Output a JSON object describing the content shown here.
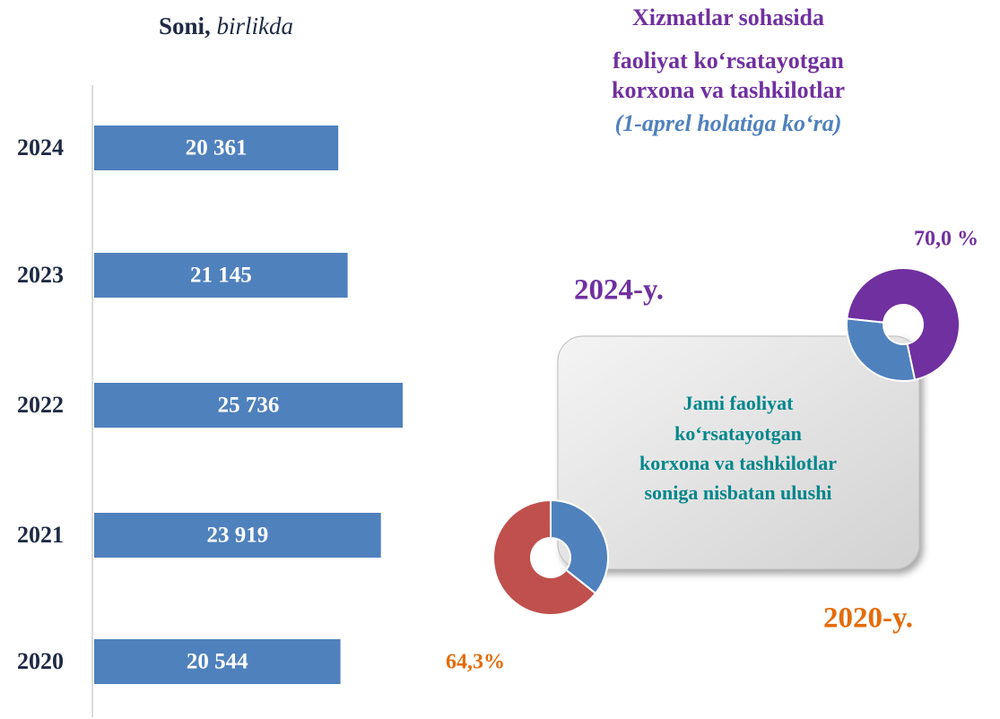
{
  "heading": {
    "lines": [
      "Xizmatlar sohasida",
      "faoliyat ko‘rsatayotgan",
      "korxona va tashkilotlar"
    ],
    "subtitle": "(1-aprel holatiga ko‘ra)"
  },
  "note": {
    "lines": [
      "Jami faoliyat",
      "ko‘rsatayotgan",
      "korxona va tashkilotlar",
      "soniga nisbatan ulushi"
    ]
  },
  "chart_data": [
    {
      "type": "bar",
      "title": "Soni,",
      "unit": "birlikda",
      "orientation": "horizontal",
      "categories": [
        "2024",
        "2023",
        "2022",
        "2021",
        "2020"
      ],
      "values": [
        20361,
        21145,
        25736,
        23919,
        20544
      ],
      "value_labels": [
        "20 361",
        "21 145",
        "25 736",
        "23 919",
        "20 544"
      ],
      "color": "#4f81bd"
    },
    {
      "type": "pie",
      "title": "2024-y.",
      "title_color": "#7030a0",
      "donut": true,
      "values": [
        70.0,
        30.0
      ],
      "value_labels": [
        "70,0 %",
        null
      ],
      "label_color": "#7030a0",
      "colors": [
        "#7030a0",
        "#4f81bd"
      ]
    },
    {
      "type": "pie",
      "title": "2020-y.",
      "title_color": "#e46c0a",
      "donut": true,
      "values": [
        64.3,
        35.7
      ],
      "value_labels": [
        "64,3%",
        null
      ],
      "label_color": "#e46c0a",
      "colors": [
        "#c0504d",
        "#4f81bd"
      ]
    }
  ]
}
